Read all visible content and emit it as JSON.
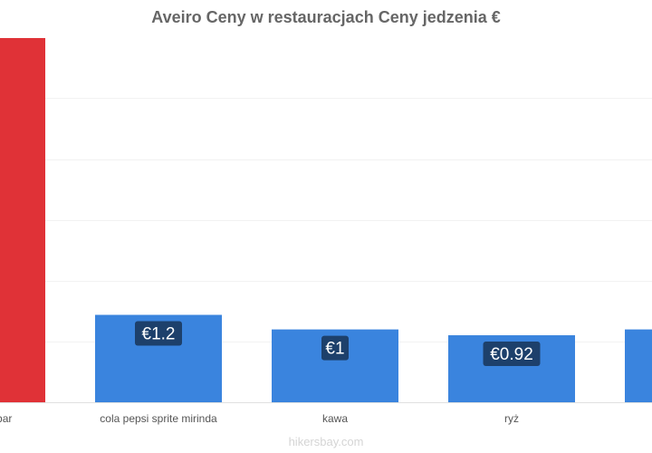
{
  "chart_data": {
    "type": "bar",
    "title": "Aveiro Ceny w restauracjach Ceny jedzenia €",
    "categories": [
      "podobny bar",
      "cola pepsi sprite mirinda",
      "kawa",
      "ryż",
      ""
    ],
    "values": [
      5.0,
      1.2,
      1,
      0.92,
      1.0
    ],
    "data_labels": [
      "",
      "€1.2",
      "€1",
      "€0.92",
      ""
    ],
    "colors": [
      "#e03237",
      "#3a84de",
      "#3a84de",
      "#3a84de",
      "#3a84de"
    ],
    "label_bg": "#1d406b",
    "gridlines": true,
    "ylim": [
      0,
      5.5
    ],
    "xlabel": "",
    "ylabel": ""
  },
  "watermark": "hikersbay.com"
}
